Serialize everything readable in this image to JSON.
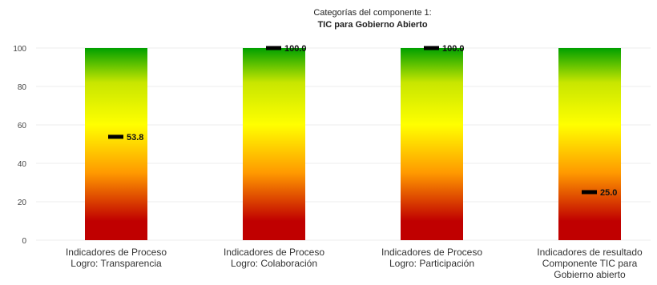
{
  "chart_data": {
    "type": "bar",
    "title": [
      "Categorías del componente 1:",
      "TIC para Gobierno Abierto"
    ],
    "ylim": [
      0,
      100
    ],
    "yticks": [
      0,
      20,
      40,
      60,
      80,
      100
    ],
    "grid": true,
    "gradient_colors": {
      "bottom": "#c00000",
      "middle": "#ffff00",
      "top": "#00a000"
    },
    "marker_color": "#000000",
    "categories": [
      {
        "lines": [
          "Indicadores de Proceso",
          "Logro: Transparencia"
        ],
        "value": 53.8,
        "value_label": "53.8"
      },
      {
        "lines": [
          "Indicadores de Proceso",
          "Logro: Colaboración"
        ],
        "value": 100.0,
        "value_label": "100.0"
      },
      {
        "lines": [
          "Indicadores de Proceso",
          "Logro: Participación"
        ],
        "value": 100.0,
        "value_label": "100.0"
      },
      {
        "lines": [
          "Indicadores de resultado",
          "Componente TIC para",
          "Gobierno abierto"
        ],
        "value": 25.0,
        "value_label": "25.0"
      }
    ]
  }
}
